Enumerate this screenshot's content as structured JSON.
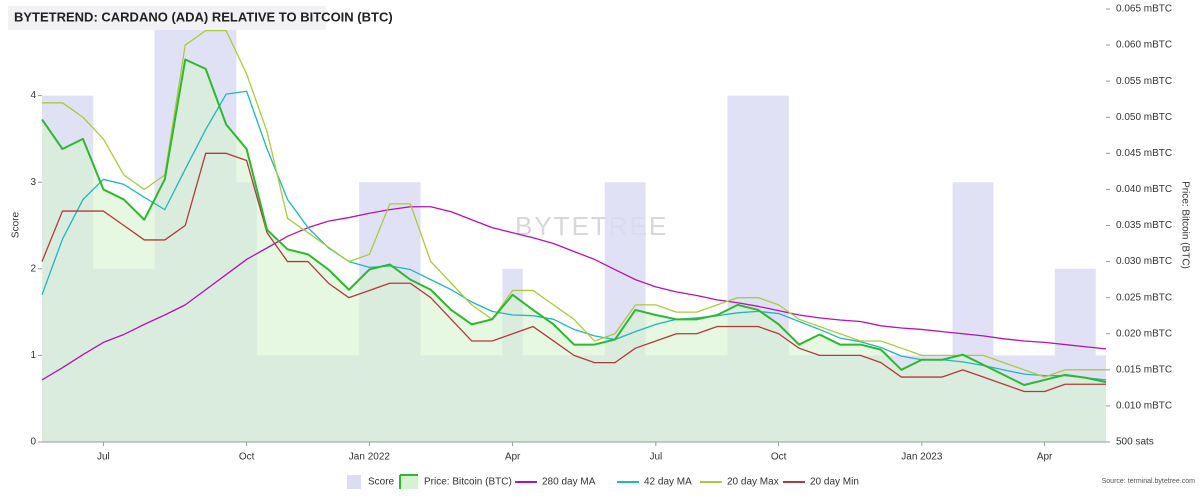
{
  "chart_data": {
    "type": "line",
    "title": "BYTETREND: CARDANO (ADA) RELATIVE TO BITCOIN (BTC)",
    "ylabel": "Score",
    "y2label": "Price: Bitcoin (BTC)",
    "watermark": "BYTETREE",
    "source": "Source: terminal.bytetree.com",
    "categories": [
      null,
      null,
      null,
      "Jul",
      null,
      null,
      null,
      null,
      null,
      null,
      "Oct",
      null,
      null,
      null,
      null,
      null,
      "Jan 2022",
      null,
      null,
      null,
      null,
      null,
      null,
      "Apr",
      null,
      null,
      null,
      null,
      null,
      null,
      "Jul",
      null,
      null,
      null,
      null,
      null,
      "Oct",
      null,
      null,
      null,
      null,
      null,
      null,
      "Jan 2023",
      null,
      null,
      null,
      null,
      null,
      "Apr",
      null,
      null,
      null
    ],
    "ylim": [
      0,
      5
    ],
    "yticks": [
      0,
      1,
      2,
      3,
      4
    ],
    "y2lim": [
      0.005,
      0.065
    ],
    "y2ticks": [
      {
        "value": 0.005,
        "label": "500 sats"
      },
      {
        "value": 0.01,
        "label": "0.010 mBTC"
      },
      {
        "value": 0.015,
        "label": "0.015 mBTC"
      },
      {
        "value": 0.02,
        "label": "0.020 mBTC"
      },
      {
        "value": 0.025,
        "label": "0.025 mBTC"
      },
      {
        "value": 0.03,
        "label": "0.030 mBTC"
      },
      {
        "value": 0.035,
        "label": "0.035 mBTC"
      },
      {
        "value": 0.04,
        "label": "0.040 mBTC"
      },
      {
        "value": 0.045,
        "label": "0.045 mBTC"
      },
      {
        "value": 0.05,
        "label": "0.050 mBTC"
      },
      {
        "value": 0.055,
        "label": "0.055 mBTC"
      },
      {
        "value": 0.06,
        "label": "0.060 mBTC"
      },
      {
        "value": 0.065,
        "label": "0.065 mBTC"
      }
    ],
    "series": [
      {
        "name": "Score",
        "type": "step-area",
        "axis": "y",
        "color": "#dcdcf5",
        "values": [
          4,
          4,
          4,
          2,
          2,
          2,
          5,
          5,
          5,
          5,
          3,
          1,
          1,
          1,
          1,
          1,
          3,
          3,
          3,
          1,
          1,
          1,
          1,
          2,
          1,
          1,
          1,
          1,
          3,
          3,
          1,
          1,
          1,
          1,
          4,
          4,
          4,
          1,
          1,
          1,
          1,
          1,
          1,
          1,
          1,
          3,
          3,
          1,
          1,
          1,
          2,
          2,
          1
        ]
      },
      {
        "name": "Price: Bitcoin (BTC)",
        "type": "area",
        "axis": "y2",
        "color": "#2db82d",
        "fill": "#d6f3cf",
        "values": [
          0.0497,
          0.0456,
          0.047,
          0.04,
          0.0386,
          0.0358,
          0.0414,
          0.058,
          0.0567,
          0.049,
          0.0456,
          0.0344,
          0.0317,
          0.031,
          0.0289,
          0.0261,
          0.0289,
          0.0296,
          0.0275,
          0.0261,
          0.0233,
          0.0213,
          0.022,
          0.0254,
          0.0233,
          0.0213,
          0.0185,
          0.0185,
          0.0192,
          0.0233,
          0.0226,
          0.022,
          0.022,
          0.0226,
          0.024,
          0.0233,
          0.0213,
          0.0185,
          0.0199,
          0.0185,
          0.0185,
          0.0178,
          0.015,
          0.0164,
          0.0164,
          0.0171,
          0.0157,
          0.0143,
          0.0129,
          0.0136,
          0.0143,
          0.0139,
          0.0133
        ]
      },
      {
        "name": "280 day MA",
        "type": "line",
        "axis": "y2",
        "color": "#b512b5",
        "values": [
          0.0136,
          0.0153,
          0.0171,
          0.0188,
          0.0199,
          0.0213,
          0.0226,
          0.024,
          0.0261,
          0.0282,
          0.0303,
          0.0319,
          0.0335,
          0.0347,
          0.0356,
          0.0361,
          0.0367,
          0.0372,
          0.0376,
          0.0376,
          0.0369,
          0.0358,
          0.0347,
          0.034,
          0.0333,
          0.0325,
          0.0314,
          0.0303,
          0.0289,
          0.0275,
          0.0265,
          0.0258,
          0.0253,
          0.0247,
          0.0243,
          0.0238,
          0.0232,
          0.0226,
          0.0222,
          0.0219,
          0.0217,
          0.0211,
          0.0208,
          0.0206,
          0.0203,
          0.02,
          0.0197,
          0.0193,
          0.019,
          0.0188,
          0.0185,
          0.0182,
          0.0179
        ]
      },
      {
        "name": "42 day MA",
        "type": "line",
        "axis": "y2",
        "color": "#1fb6c1",
        "values": [
          0.0254,
          0.0331,
          0.0386,
          0.0414,
          0.0407,
          0.0389,
          0.0372,
          0.0428,
          0.0483,
          0.0532,
          0.0536,
          0.0456,
          0.0386,
          0.0347,
          0.0319,
          0.03,
          0.0292,
          0.0294,
          0.0289,
          0.0275,
          0.0261,
          0.0244,
          0.0231,
          0.0226,
          0.0225,
          0.022,
          0.0206,
          0.0197,
          0.0192,
          0.0203,
          0.0213,
          0.022,
          0.0222,
          0.0225,
          0.0229,
          0.0231,
          0.0228,
          0.0217,
          0.0206,
          0.0194,
          0.0189,
          0.0181,
          0.0169,
          0.0164,
          0.0164,
          0.0161,
          0.0156,
          0.015,
          0.0144,
          0.0142,
          0.0142,
          0.0139,
          0.0136
        ]
      },
      {
        "name": "20 day Max",
        "type": "line",
        "axis": "y2",
        "color": "#a9cc3c",
        "values": [
          0.052,
          0.052,
          0.05,
          0.047,
          0.042,
          0.04,
          0.042,
          0.06,
          0.062,
          0.062,
          0.056,
          0.048,
          0.036,
          0.034,
          0.032,
          0.03,
          0.031,
          0.038,
          0.038,
          0.03,
          0.027,
          0.024,
          0.022,
          0.026,
          0.026,
          0.024,
          0.022,
          0.019,
          0.02,
          0.024,
          0.024,
          0.023,
          0.023,
          0.024,
          0.025,
          0.025,
          0.024,
          0.022,
          0.021,
          0.02,
          0.019,
          0.019,
          0.018,
          0.017,
          0.017,
          0.017,
          0.017,
          0.016,
          0.015,
          0.014,
          0.015,
          0.015,
          0.015
        ]
      },
      {
        "name": "20 day Min",
        "type": "line",
        "axis": "y2",
        "color": "#b33a3a",
        "values": [
          0.03,
          0.037,
          0.037,
          0.037,
          0.035,
          0.033,
          0.033,
          0.035,
          0.045,
          0.045,
          0.044,
          0.034,
          0.03,
          0.03,
          0.027,
          0.025,
          0.026,
          0.027,
          0.027,
          0.025,
          0.022,
          0.019,
          0.019,
          0.02,
          0.021,
          0.019,
          0.017,
          0.016,
          0.016,
          0.018,
          0.019,
          0.02,
          0.02,
          0.021,
          0.021,
          0.021,
          0.02,
          0.018,
          0.017,
          0.017,
          0.017,
          0.016,
          0.014,
          0.014,
          0.014,
          0.015,
          0.014,
          0.013,
          0.012,
          0.012,
          0.013,
          0.013,
          0.013
        ]
      }
    ]
  }
}
